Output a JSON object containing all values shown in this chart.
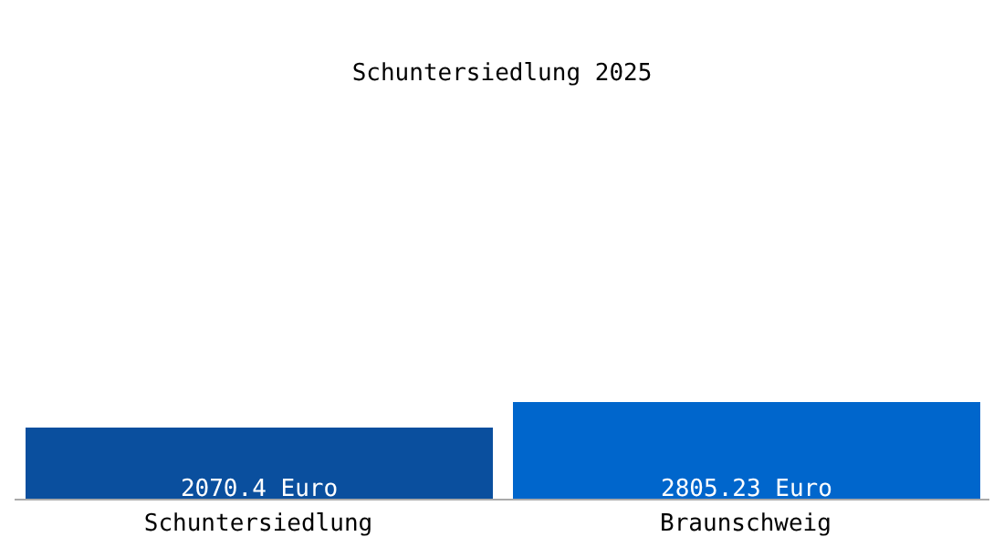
{
  "chart_data": {
    "type": "bar",
    "title": "Schuntersiedlung 2025",
    "categories": [
      "Schuntersiedlung",
      "Braunschweig"
    ],
    "values": [
      2070.4,
      2805.23
    ],
    "colors": [
      "#0a4f9e",
      "#0066cc"
    ],
    "value_labels": [
      "2070.4 Euro",
      "2805.23 Euro"
    ],
    "grid": false,
    "legend": false
  }
}
